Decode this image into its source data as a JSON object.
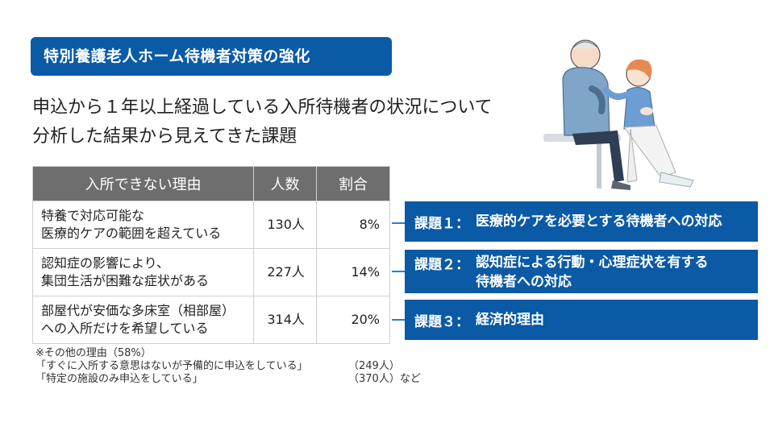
{
  "title": "特別養護老人ホーム待機者対策の強化",
  "subtitle": {
    "line1": "申込から１年以上経過している入所待機者の状況について",
    "line2": "分析した結果から見えてきた課題"
  },
  "table": {
    "headers": [
      "入所できない理由",
      "人数",
      "割合"
    ],
    "rows": [
      {
        "reason_lines": [
          "特養で対応可能な",
          "医療的ケアの範囲を超えている"
        ],
        "count": "130人",
        "pct": "8%"
      },
      {
        "reason_lines": [
          "認知症の影響により、",
          "集団生活が困難な症状がある"
        ],
        "count": "227人",
        "pct": "14%"
      },
      {
        "reason_lines": [
          "部屋代が安価な多床室（相部屋）",
          "への入所だけを希望している"
        ],
        "count": "314人",
        "pct": "20%"
      }
    ]
  },
  "notes": {
    "heading": "※その他の理由（58%）",
    "items": [
      {
        "text": "「すぐに入所する意思はないが予備的に申込をしている」",
        "value": "（249人）"
      },
      {
        "text": "「特定の施設のみ申込をしている」",
        "value": "（370人）など"
      }
    ]
  },
  "issues": [
    {
      "head": "課題１：",
      "body_lines": [
        "医療的ケアを必要とする待機者への対応"
      ]
    },
    {
      "head": "課題２：",
      "body_lines": [
        "認知症による行動・心理症状を有する",
        "待機者への対応"
      ]
    },
    {
      "head": "課題３：",
      "body_lines": [
        "経済的理由"
      ]
    }
  ],
  "colors": {
    "accent": "#0b5aa6",
    "table_header": "#6e6e6e",
    "connector": "#2f7ec8"
  },
  "illustration": "caregiver-talking-with-elderly-man"
}
